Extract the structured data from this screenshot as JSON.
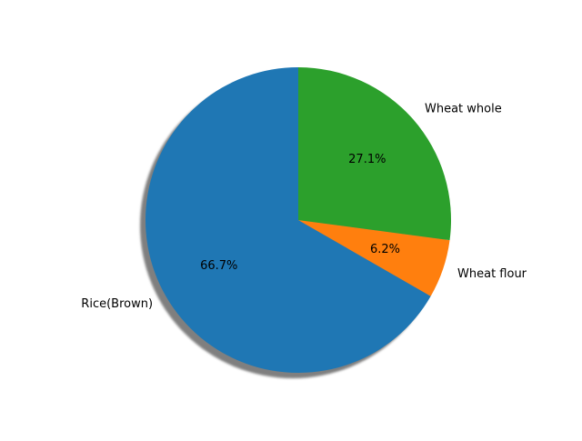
{
  "chart_data": {
    "type": "pie",
    "title": "",
    "shadow": true,
    "start_angle_deg": 90,
    "direction": "counterclockwise",
    "slices": [
      {
        "label": "Rice(Brown)",
        "value": 66.7,
        "pct_label": "66.7%",
        "color": "#1f77b4"
      },
      {
        "label": "Wheat flour",
        "value": 6.2,
        "pct_label": "6.2%",
        "color": "#ff7f0e"
      },
      {
        "label": "Wheat whole",
        "value": 27.1,
        "pct_label": "27.1%",
        "color": "#2ca02c"
      }
    ]
  }
}
